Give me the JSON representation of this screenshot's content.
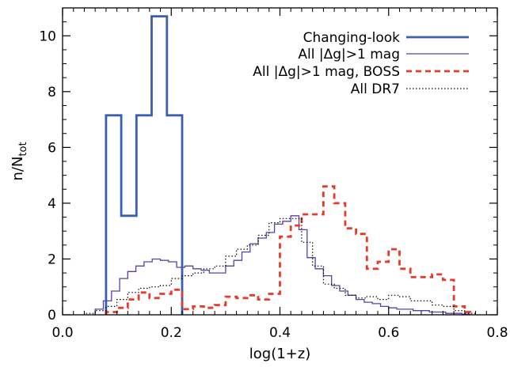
{
  "chart_data": {
    "type": "step-histogram",
    "xlabel": "log(1+z)",
    "ylabel": {
      "base": "n/N",
      "subscript": "tot"
    },
    "xlim": [
      0.0,
      0.8
    ],
    "ylim": [
      0,
      11
    ],
    "xticks": [
      0.0,
      0.2,
      0.4,
      0.6,
      0.8
    ],
    "xtick_labels": [
      "0.0",
      "0.2",
      "0.4",
      "0.6",
      "0.8"
    ],
    "yticks": [
      0,
      2,
      4,
      6,
      8,
      10
    ],
    "ytick_labels": [
      "0",
      "2",
      "4",
      "6",
      "8",
      "10"
    ],
    "grid": false,
    "legend_position": "top-right",
    "series": [
      {
        "name": "Changing-look",
        "color": "#3a5fac",
        "style": "solid-thick",
        "edges": [
          0.08,
          0.108,
          0.136,
          0.164,
          0.192,
          0.22
        ],
        "values": [
          7.15,
          3.55,
          7.15,
          10.7,
          7.15
        ]
      },
      {
        "name": "All |Δg|>1 mag",
        "color": "#5b3fa8",
        "style": "solid-thin",
        "edges": [
          0.06,
          0.075,
          0.09,
          0.105,
          0.12,
          0.135,
          0.15,
          0.165,
          0.18,
          0.195,
          0.21,
          0.225,
          0.24,
          0.255,
          0.27,
          0.285,
          0.3,
          0.315,
          0.33,
          0.345,
          0.36,
          0.375,
          0.39,
          0.405,
          0.42,
          0.435,
          0.45,
          0.465,
          0.48,
          0.495,
          0.51,
          0.525,
          0.54,
          0.555,
          0.57,
          0.585,
          0.6,
          0.615,
          0.63,
          0.645,
          0.66,
          0.675,
          0.69,
          0.705,
          0.72,
          0.735,
          0.75
        ],
        "values": [
          0.2,
          0.5,
          0.85,
          1.3,
          1.55,
          1.75,
          1.9,
          2.0,
          1.95,
          1.9,
          1.7,
          1.75,
          1.65,
          1.6,
          1.5,
          1.5,
          1.75,
          1.95,
          2.25,
          2.55,
          2.75,
          2.95,
          3.25,
          3.35,
          3.55,
          3.05,
          2.05,
          1.65,
          1.4,
          1.05,
          0.85,
          0.7,
          0.55,
          0.45,
          0.4,
          0.3,
          0.25,
          0.2,
          0.2,
          0.15,
          0.15,
          0.1,
          0.1,
          0.05,
          0.05,
          0.02
        ]
      },
      {
        "name": "All |Δg|>1 mag, BOSS",
        "color": "#e83a2a",
        "style": "dashed-thick",
        "edges": [
          0.08,
          0.1,
          0.12,
          0.14,
          0.16,
          0.18,
          0.2,
          0.22,
          0.24,
          0.26,
          0.28,
          0.3,
          0.32,
          0.34,
          0.36,
          0.38,
          0.4,
          0.42,
          0.44,
          0.46,
          0.48,
          0.5,
          0.52,
          0.54,
          0.56,
          0.58,
          0.6,
          0.62,
          0.64,
          0.66,
          0.68,
          0.7,
          0.72,
          0.74,
          0.75
        ],
        "values": [
          0.1,
          0.25,
          0.55,
          0.8,
          0.6,
          0.75,
          0.9,
          0.2,
          0.3,
          0.25,
          0.35,
          0.65,
          0.6,
          0.7,
          0.55,
          0.75,
          2.8,
          3.2,
          3.6,
          3.6,
          4.6,
          4.0,
          3.1,
          2.9,
          1.65,
          1.9,
          2.35,
          1.65,
          1.35,
          1.35,
          1.45,
          1.25,
          0.3,
          0.1
        ]
      },
      {
        "name": "All DR7",
        "color": "#000000",
        "style": "dotted",
        "edges": [
          0.04,
          0.06,
          0.08,
          0.1,
          0.12,
          0.14,
          0.16,
          0.18,
          0.2,
          0.22,
          0.24,
          0.26,
          0.28,
          0.3,
          0.32,
          0.34,
          0.36,
          0.38,
          0.4,
          0.42,
          0.44,
          0.46,
          0.48,
          0.5,
          0.52,
          0.54,
          0.56,
          0.58,
          0.6,
          0.62,
          0.64,
          0.66,
          0.68,
          0.7,
          0.72,
          0.74,
          0.76
        ],
        "values": [
          0.05,
          0.15,
          0.3,
          0.55,
          0.8,
          0.95,
          1.0,
          1.05,
          1.3,
          1.4,
          1.5,
          1.65,
          1.75,
          2.1,
          2.35,
          2.5,
          2.85,
          3.3,
          3.45,
          3.45,
          2.6,
          1.75,
          1.1,
          0.95,
          0.7,
          0.6,
          0.65,
          0.55,
          0.7,
          0.65,
          0.5,
          0.5,
          0.35,
          0.3,
          0.15,
          0.05
        ]
      }
    ]
  }
}
